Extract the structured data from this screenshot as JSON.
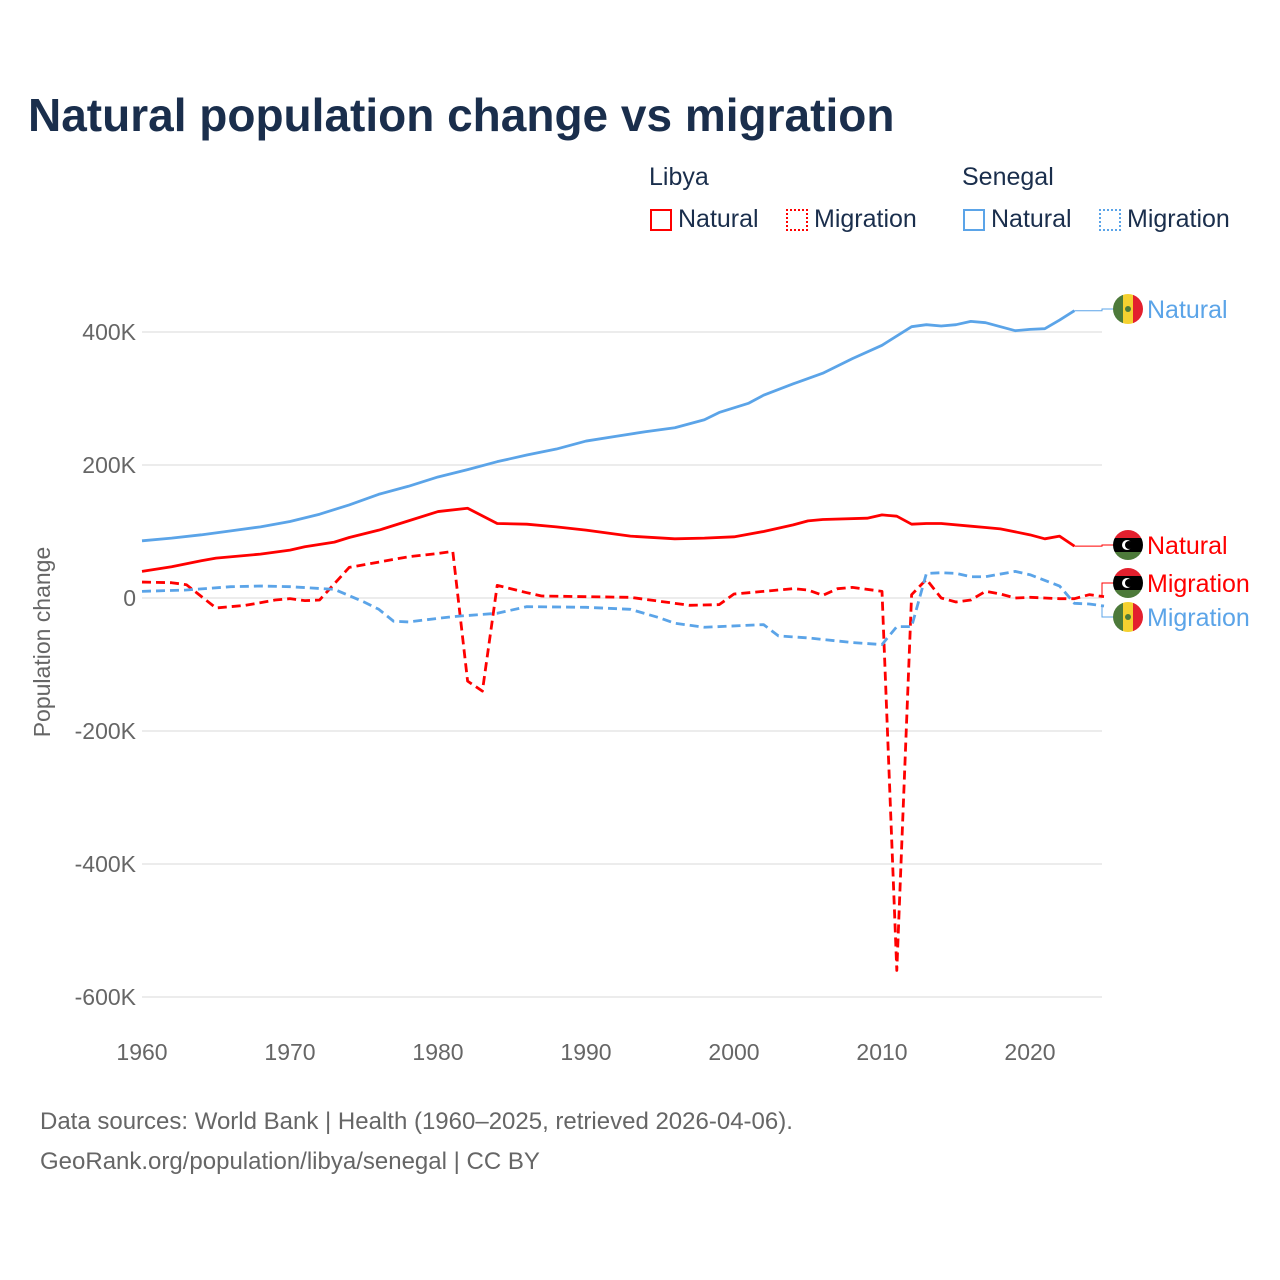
{
  "title": "Natural population change vs migration",
  "legend": {
    "groups": [
      {
        "country": "Libya",
        "items": [
          {
            "label": "Natural",
            "style": "solid"
          },
          {
            "label": "Migration",
            "style": "dotted"
          }
        ],
        "color": "#ff0000"
      },
      {
        "country": "Senegal",
        "items": [
          {
            "label": "Natural",
            "style": "solid"
          },
          {
            "label": "Migration",
            "style": "dotted"
          }
        ],
        "color": "#5ba4e8"
      }
    ]
  },
  "footer": {
    "line1": "Data sources: World Bank | Health (1960–2025, retrieved 2026-04-06).",
    "line2": "GeoRank.org/population/libya/senegal | CC BY"
  },
  "chart_data": {
    "type": "line",
    "title": "Natural population change vs migration",
    "xlabel": "",
    "ylabel": "Population change",
    "xlim": [
      1960,
      2025
    ],
    "ylim": [
      -600000,
      450000
    ],
    "xticks": [
      1960,
      1970,
      1980,
      1990,
      2000,
      2010,
      2020
    ],
    "xtick_labels": [
      "1960",
      "1970",
      "1980",
      "1990",
      "2000",
      "2010",
      "2020"
    ],
    "yticks": [
      400000,
      200000,
      0,
      -200000,
      -400000,
      -600000
    ],
    "ytick_labels": [
      "400K",
      "200K",
      "0",
      "-200K",
      "-400K",
      "-600K"
    ],
    "grid": true,
    "series": [
      {
        "name": "Senegal Natural",
        "end_label": "Natural",
        "flag": "senegal",
        "color": "#5ba4e8",
        "dash": "solid",
        "x": [
          1960,
          1962,
          1964,
          1966,
          1968,
          1970,
          1972,
          1974,
          1976,
          1978,
          1980,
          1982,
          1984,
          1986,
          1988,
          1990,
          1992,
          1994,
          1996,
          1998,
          1999,
          2000,
          2001,
          2002,
          2004,
          2006,
          2008,
          2010,
          2012,
          2013,
          2014,
          2015,
          2016,
          2017,
          2018,
          2019,
          2020,
          2021,
          2022,
          2023
        ],
        "y": [
          86000,
          90000,
          95000,
          101000,
          107000,
          115000,
          126000,
          140000,
          156000,
          168000,
          182000,
          193000,
          205000,
          215000,
          224000,
          236000,
          243000,
          250000,
          256000,
          268000,
          279000,
          286000,
          293000,
          305000,
          322000,
          338000,
          360000,
          380000,
          408000,
          411000,
          409000,
          411000,
          416000,
          414000,
          408000,
          402000,
          404000,
          405000,
          418000,
          432000
        ]
      },
      {
        "name": "Libya Natural",
        "end_label": "Natural",
        "flag": "libya",
        "color": "#ff0000",
        "dash": "solid",
        "x": [
          1960,
          1962,
          1964,
          1965,
          1968,
          1970,
          1971,
          1973,
          1974,
          1976,
          1978,
          1980,
          1982,
          1984,
          1986,
          1988,
          1990,
          1993,
          1996,
          1998,
          2000,
          2002,
          2004,
          2005,
          2006,
          2009,
          2010,
          2011,
          2012,
          2013,
          2014,
          2016,
          2017,
          2018,
          2020,
          2021,
          2022,
          2023
        ],
        "y": [
          40000,
          47000,
          56000,
          60000,
          66000,
          72000,
          77000,
          84000,
          91000,
          102000,
          116000,
          130000,
          135000,
          112000,
          111000,
          107000,
          102000,
          93000,
          89000,
          90000,
          92000,
          100000,
          110000,
          116000,
          118000,
          120000,
          125000,
          123000,
          111000,
          112000,
          112000,
          108000,
          106000,
          104000,
          95000,
          89000,
          93000,
          78000
        ]
      },
      {
        "name": "Libya Migration",
        "end_label": "Migration",
        "flag": "libya",
        "color": "#ff0000",
        "dash": "dashed",
        "x": [
          1960,
          1962,
          1963,
          1965,
          1967,
          1969,
          1970,
          1971,
          1972,
          1974,
          1976,
          1978,
          1980,
          1981,
          1982,
          1983,
          1984,
          1986,
          1987,
          1990,
          1993,
          1995,
          1997,
          1999,
          2000,
          2002,
          2004,
          2005,
          2006,
          2007,
          2008,
          2010,
          2011,
          2012,
          2013,
          2014,
          2015,
          2016,
          2017,
          2018,
          2019,
          2020,
          2021,
          2022,
          2023,
          2024,
          2025
        ],
        "y": [
          24000,
          23000,
          20000,
          -15000,
          -11000,
          -3000,
          -1000,
          -4000,
          -3000,
          46000,
          54000,
          62000,
          67000,
          70000,
          -125000,
          -140000,
          19000,
          8000,
          3000,
          2000,
          1000,
          -5000,
          -11000,
          -10000,
          6000,
          10000,
          14000,
          12000,
          4000,
          14000,
          16000,
          10000,
          -560000,
          5000,
          28000,
          0,
          -6000,
          -3000,
          10000,
          6000,
          0,
          1000,
          0,
          -1000,
          -1000,
          5000,
          2000
        ]
      },
      {
        "name": "Senegal Migration",
        "end_label": "Migration",
        "flag": "senegal",
        "color": "#5ba4e8",
        "dash": "dashed",
        "x": [
          1960,
          1963,
          1966,
          1968,
          1970,
          1973,
          1975,
          1976,
          1977,
          1978,
          1981,
          1984,
          1986,
          1990,
          1993,
          1995,
          1996,
          1998,
          2000,
          2002,
          2003,
          2005,
          2008,
          2010,
          2011,
          2012,
          2013,
          2014,
          2015,
          2016,
          2017,
          2018,
          2019,
          2020,
          2022,
          2023,
          2024,
          2025
        ],
        "y": [
          10000,
          12000,
          17000,
          18000,
          17000,
          13000,
          -6000,
          -17000,
          -35000,
          -36000,
          -28000,
          -23000,
          -13000,
          -14000,
          -17000,
          -30000,
          -38000,
          -44000,
          -42000,
          -40000,
          -57000,
          -60000,
          -67000,
          -70000,
          -43000,
          -43000,
          37000,
          38000,
          37000,
          32000,
          32000,
          36000,
          40000,
          35000,
          18000,
          -8000,
          -9000,
          -12000
        ]
      }
    ]
  }
}
